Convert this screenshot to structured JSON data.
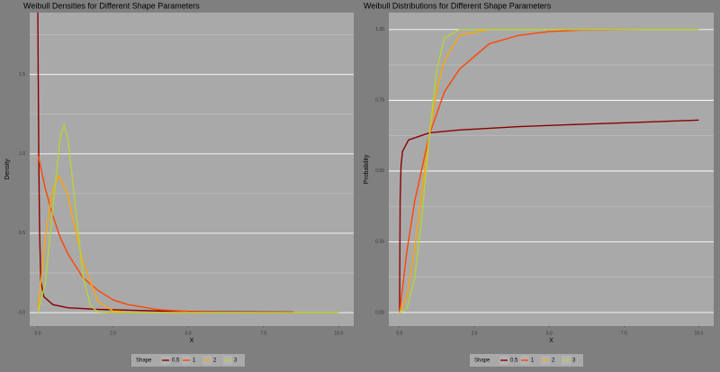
{
  "chart_data": [
    {
      "type": "line",
      "title": "Weibull Densities for Different Shape Parameters",
      "xlabel": "X",
      "ylabel": "Density",
      "legend_title": "Shape",
      "legend_position": "bottom",
      "grid": "y",
      "xlim": [
        -0.27,
        10.5
      ],
      "ylim": [
        -0.085,
        1.89
      ],
      "xticks": [
        {
          "value": 0,
          "label": "0.0"
        },
        2.5,
        {
          "value": 5,
          "label": "5.0"
        },
        7.5,
        {
          "value": 10,
          "label": "10.0"
        }
      ],
      "yticks": [
        {
          "value": 0,
          "label": "0.0"
        },
        0.5,
        {
          "value": 1,
          "label": "1.0"
        },
        1.5
      ],
      "series": [
        {
          "name": "0.5",
          "color": "#8b0000",
          "x": [
            0,
            0.03,
            0.06,
            0.1,
            0.2,
            0.5,
            1,
            2,
            4,
            6,
            8.5
          ],
          "values": [
            1.89,
            1.0,
            0.5,
            0.2,
            0.1,
            0.05,
            0.03,
            0.02,
            0.01,
            0.005,
            0.003
          ]
        },
        {
          "name": "1",
          "color": "#ff4500",
          "x": [
            0,
            0.25,
            0.5,
            0.75,
            1,
            1.5,
            2,
            2.5,
            3,
            4,
            5,
            6,
            8.5
          ],
          "values": [
            1,
            0.78,
            0.61,
            0.47,
            0.37,
            0.22,
            0.14,
            0.08,
            0.05,
            0.018,
            0.007,
            0.002,
            0.0002
          ]
        },
        {
          "name": "2",
          "color": "#ffa500",
          "x": [
            0,
            0.25,
            0.5,
            0.7,
            1,
            1.25,
            1.5,
            2,
            2.5,
            3,
            4,
            5,
            7,
            10
          ],
          "values": [
            0,
            0.47,
            0.78,
            0.86,
            0.74,
            0.52,
            0.32,
            0.07,
            0.01,
            0.0007,
            0,
            0,
            0,
            0
          ]
        },
        {
          "name": "3",
          "color": "#b5d33a",
          "x": [
            0,
            0.25,
            0.5,
            0.75,
            0.87,
            1,
            1.25,
            1.5,
            1.75,
            2,
            2.5,
            3,
            5,
            10
          ],
          "values": [
            0,
            0.185,
            0.66,
            1.11,
            1.18,
            1.1,
            0.665,
            0.231,
            0.043,
            0.004,
            0,
            0,
            0,
            0
          ]
        }
      ]
    },
    {
      "type": "line",
      "title": "Weibull Distributions for Different Shape Parameters",
      "xlabel": "X",
      "ylabel": "Probability",
      "legend_title": "Shape",
      "legend_position": "bottom",
      "grid": "y",
      "xlim": [
        -0.36,
        10.5
      ],
      "ylim": [
        -0.048,
        1.06
      ],
      "xticks": [
        {
          "value": 0,
          "label": "0.0"
        },
        2.5,
        {
          "value": 5,
          "label": "5.0"
        },
        7.5,
        {
          "value": 10,
          "label": "10.0"
        }
      ],
      "yticks": [
        {
          "value": 0,
          "label": "0.00"
        },
        0.25,
        {
          "value": 0.5,
          "label": "0.50"
        },
        0.75,
        {
          "value": 1,
          "label": "1.00"
        }
      ],
      "series": [
        {
          "name": "0.5",
          "color": "#8b0000",
          "x": [
            0,
            0.02,
            0.05,
            0.1,
            0.3,
            1,
            2,
            4,
            6,
            8,
            10
          ],
          "values": [
            0,
            0.4,
            0.52,
            0.57,
            0.61,
            0.635,
            0.645,
            0.657,
            0.665,
            0.672,
            0.68
          ]
        },
        {
          "name": "1",
          "color": "#ff4500",
          "x": [
            0,
            0.25,
            0.5,
            1,
            1.5,
            2,
            3,
            4,
            5,
            6,
            7,
            8,
            10
          ],
          "values": [
            0,
            0.22,
            0.39,
            0.63,
            0.78,
            0.86,
            0.95,
            0.98,
            0.993,
            0.998,
            0.999,
            1,
            1
          ]
        },
        {
          "name": "2",
          "color": "#ffa500",
          "x": [
            0,
            0.25,
            0.5,
            0.75,
            1,
            1.25,
            1.5,
            2,
            3,
            10
          ],
          "values": [
            0,
            0.06,
            0.22,
            0.43,
            0.63,
            0.79,
            0.89,
            0.98,
            1,
            1
          ]
        },
        {
          "name": "3",
          "color": "#b5d33a",
          "x": [
            0,
            0.25,
            0.5,
            0.75,
            1,
            1.25,
            1.5,
            2,
            3,
            10
          ],
          "values": [
            0,
            0.015,
            0.12,
            0.34,
            0.63,
            0.86,
            0.97,
            1,
            1,
            1
          ]
        }
      ]
    }
  ]
}
